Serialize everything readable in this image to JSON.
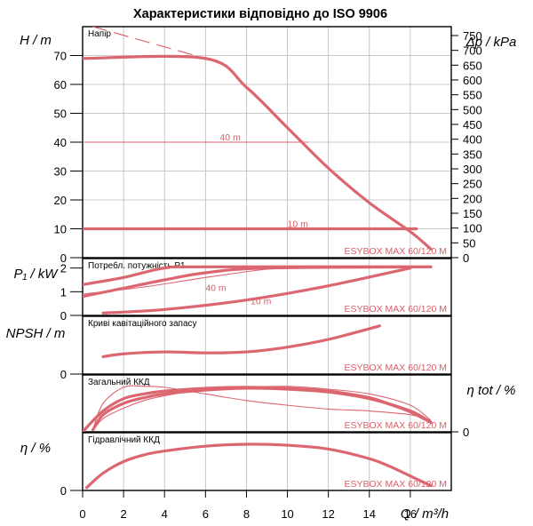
{
  "title": "Характеристики відповідно до ISO 9906",
  "colors": {
    "curve": "#dc6670",
    "grid": "#b9b9b9",
    "axis": "#000000"
  },
  "x_axis": {
    "label": "Q / m³/h",
    "ticks": [
      0,
      2,
      4,
      6,
      8,
      10,
      12,
      14,
      16
    ]
  },
  "chart_data": [
    {
      "type": "line",
      "title": "Напір",
      "ylabel": "H / m",
      "y2label": "Δp / kPa",
      "ylim": [
        0,
        80
      ],
      "xlim": [
        0,
        18
      ],
      "y_ticks": [
        0,
        10,
        20,
        30,
        40,
        50,
        60,
        70
      ],
      "y2_ticks": [
        0,
        50,
        100,
        150,
        200,
        250,
        300,
        350,
        400,
        450,
        500,
        550,
        600,
        650,
        700,
        750
      ],
      "model_label": "ESYBOX MAX 60/120 M",
      "annotations": [
        {
          "text": "40 m",
          "x": 6.7,
          "y": 40
        },
        {
          "text": "10 m",
          "x": 10.0,
          "y": 10
        }
      ],
      "series": [
        {
          "style": "dashed",
          "x": [
            0.5,
            6.0
          ],
          "y": [
            80,
            69
          ]
        },
        {
          "style": "thick",
          "x": [
            0,
            6.0,
            8.0,
            10.0,
            12.0,
            14.0,
            16.0,
            17.0
          ],
          "y": [
            69,
            69,
            59,
            45,
            31,
            19,
            9,
            3
          ]
        },
        {
          "style": "thin",
          "x": [
            0,
            11.0
          ],
          "y": [
            40,
            40
          ]
        },
        {
          "style": "thick",
          "x": [
            0,
            16.3
          ],
          "y": [
            10,
            10
          ]
        }
      ]
    },
    {
      "type": "line",
      "title": "Потребл. потужність P1",
      "ylabel": "P₁ / kW",
      "ylim": [
        0,
        2.4
      ],
      "xlim": [
        0,
        18
      ],
      "y_ticks": [
        0,
        1,
        2
      ],
      "model_label": "ESYBOX MAX 60/120 M",
      "annotations": [
        {
          "text": "40 m",
          "x": 6.0,
          "y": 0.95
        },
        {
          "text": "10 m",
          "x": 8.2,
          "y": 0.4
        }
      ],
      "series": [
        {
          "style": "thick",
          "x": [
            0,
            2,
            4,
            6,
            17
          ],
          "y": [
            1.3,
            1.6,
            2.0,
            2.05,
            2.05
          ]
        },
        {
          "style": "thick",
          "x": [
            0,
            2,
            4,
            6,
            9,
            17
          ],
          "y": [
            0.8,
            1.15,
            1.5,
            1.8,
            2.0,
            2.05
          ]
        },
        {
          "style": "thin",
          "x": [
            0,
            3,
            6,
            9,
            11
          ],
          "y": [
            0.9,
            1.2,
            1.6,
            1.95,
            2.05
          ]
        },
        {
          "style": "thick",
          "x": [
            1,
            4,
            8,
            12,
            16
          ],
          "y": [
            0.1,
            0.25,
            0.65,
            1.25,
            2.0
          ]
        }
      ]
    },
    {
      "type": "line",
      "title": "Криві кавітаційного запасу",
      "ylabel": "NPSH / m",
      "ylim": [
        0,
        6
      ],
      "xlim": [
        0,
        18
      ],
      "y_ticks": [
        0
      ],
      "model_label": "ESYBOX MAX 60/120 M",
      "series": [
        {
          "style": "thick",
          "x": [
            1.0,
            2.0,
            4.0,
            6.0,
            8.0,
            10.0,
            12.0,
            14.5
          ],
          "y": [
            1.8,
            2.1,
            2.3,
            2.2,
            2.3,
            2.8,
            3.6,
            5.0
          ]
        }
      ]
    },
    {
      "type": "line",
      "title": "Загальний ККД",
      "y2label": "η tot / %",
      "ylim": [
        0,
        60
      ],
      "xlim": [
        0,
        18
      ],
      "y2_ticks": [
        0
      ],
      "model_label": "ESYBOX MAX 60/120 M",
      "series": [
        {
          "style": "thick",
          "x": [
            0,
            1,
            2,
            3,
            4,
            6,
            8,
            10,
            12,
            14,
            15,
            16,
            17
          ],
          "y": [
            0,
            22,
            35,
            40,
            43,
            46,
            47,
            46,
            43,
            36,
            29,
            21,
            10
          ]
        },
        {
          "style": "thick",
          "x": [
            0.5,
            1,
            2,
            3,
            4,
            6,
            8,
            10,
            12,
            14,
            16,
            17
          ],
          "y": [
            2,
            18,
            30,
            36,
            40,
            44,
            46,
            45,
            42,
            35,
            22,
            10
          ]
        },
        {
          "style": "thin",
          "x": [
            0.5,
            1,
            2,
            3,
            4,
            6,
            8,
            10,
            12,
            14,
            16,
            17
          ],
          "y": [
            2,
            30,
            47,
            48,
            47,
            40,
            33,
            28,
            24,
            22,
            18,
            12
          ]
        },
        {
          "style": "thin",
          "x": [
            0.5,
            1,
            2,
            3,
            4,
            6,
            8,
            10,
            12,
            14,
            16,
            17
          ],
          "y": [
            1,
            14,
            25,
            33,
            38,
            45,
            47,
            48,
            45,
            40,
            28,
            12
          ]
        }
      ]
    },
    {
      "type": "line",
      "title": "Гідравлічний ККД",
      "ylabel": "η / %",
      "ylim": [
        0,
        60
      ],
      "xlim": [
        0,
        18
      ],
      "y_ticks": [
        0
      ],
      "model_label": "ESYBOX MAX 60/120 M",
      "series": [
        {
          "style": "thick",
          "x": [
            0.2,
            1,
            2,
            3,
            4,
            6,
            8,
            10,
            12,
            14,
            15,
            16,
            17
          ],
          "y": [
            3,
            18,
            30,
            37,
            41,
            46,
            48,
            47,
            43,
            33,
            25,
            15,
            5
          ]
        }
      ]
    }
  ]
}
